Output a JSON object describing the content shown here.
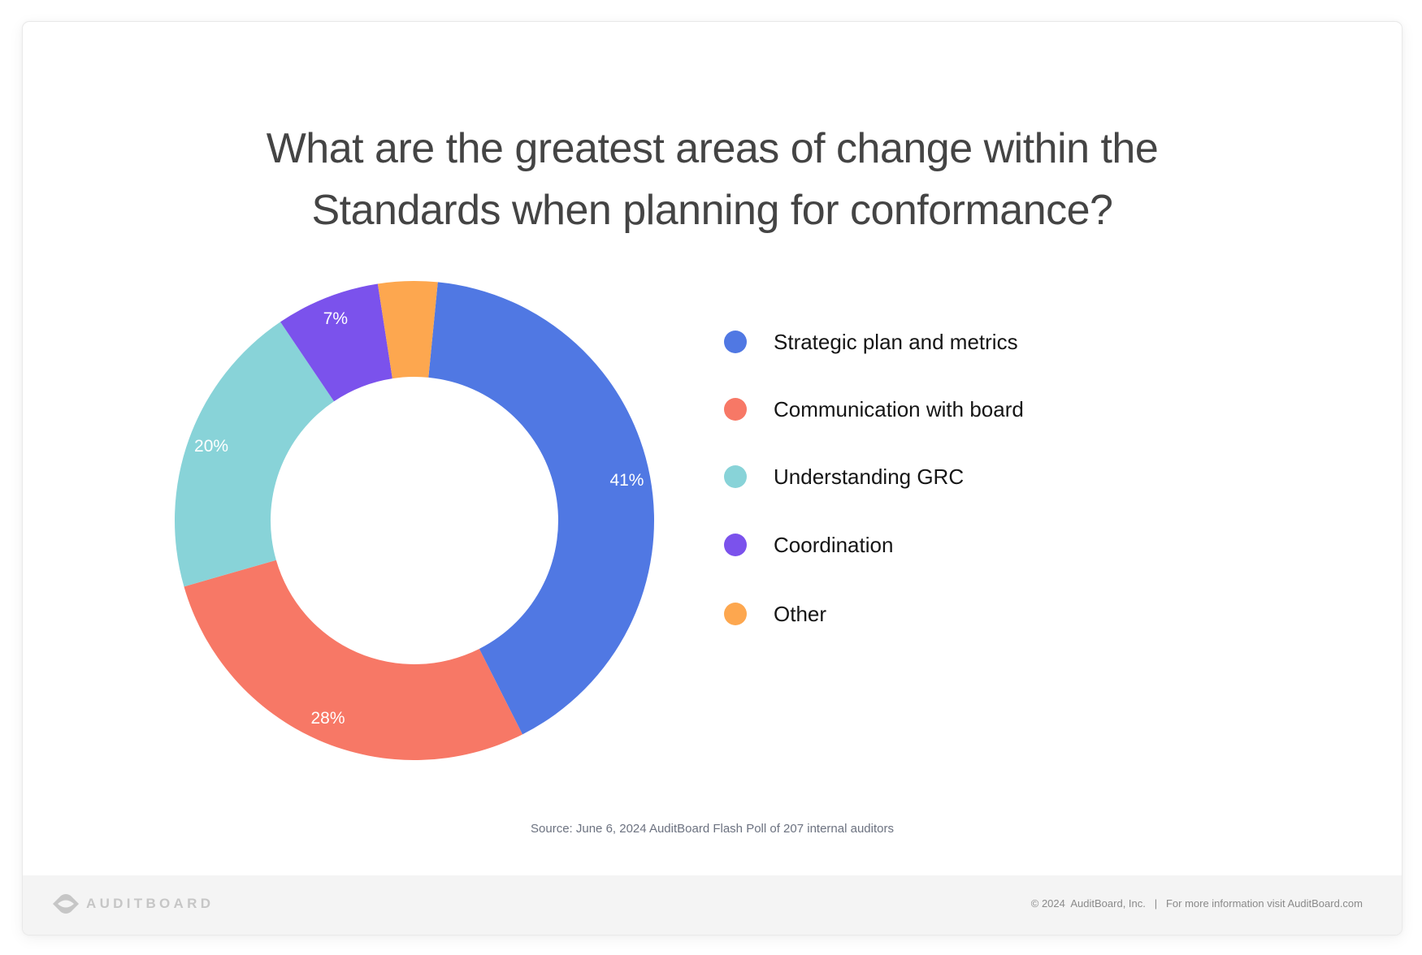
{
  "title": {
    "line1": "What are the greatest areas of change within the",
    "line2": "Standards when planning for conformance?"
  },
  "chart_data": {
    "type": "pie",
    "variant": "donut",
    "title": "What are the greatest areas of change within the Standards when planning for conformance?",
    "categories": [
      "Strategic plan and metrics",
      "Communication with board",
      "Understanding GRC",
      "Coordination",
      "Other"
    ],
    "values": [
      41,
      28,
      20,
      7,
      4
    ],
    "value_labels": [
      "41%",
      "28%",
      "20%",
      "7%",
      ""
    ],
    "colors": [
      "#5078E3",
      "#F77866",
      "#88D3D8",
      "#7B52EC",
      "#FDA74F"
    ],
    "unit": "%",
    "legend_position": "right",
    "start_angle_deg": 5.6,
    "direction": "clockwise",
    "inner_radius_ratio": 0.6,
    "source": "Source: June 6, 2024 AuditBoard Flash Poll of 207 internal auditors"
  },
  "legend": {
    "items": [
      {
        "label": "Strategic plan and metrics",
        "color": "#5078E3"
      },
      {
        "label": "Communication with board",
        "color": "#F77866"
      },
      {
        "label": "Understanding GRC",
        "color": "#88D3D8"
      },
      {
        "label": "Coordination",
        "color": "#7B52EC"
      },
      {
        "label": "Other",
        "color": "#FDA74F"
      }
    ]
  },
  "source": "Source: June 6, 2024 AuditBoard Flash Poll of 207 internal auditors",
  "footer": {
    "logo_text": "AUDITBOARD",
    "logo_icon": "auditboard-logo-icon",
    "copyright": "© 2024  AuditBoard, Inc.",
    "separator": "|",
    "info": "For more information visit AuditBoard.com"
  }
}
